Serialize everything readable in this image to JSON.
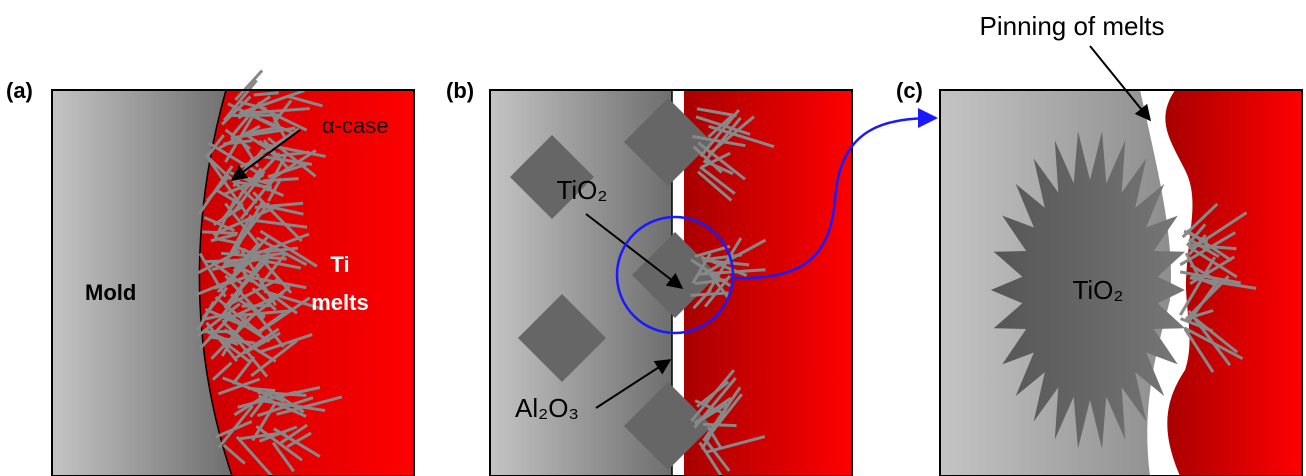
{
  "panels": [
    {
      "label": "(a)",
      "texts": [
        "Mold",
        "Ti",
        "melts",
        "α-case"
      ]
    },
    {
      "label": "(b)",
      "texts": [
        "TiO₂",
        "Al₂O₃"
      ]
    },
    {
      "label": "(c)",
      "texts": [
        "TiO₂"
      ]
    }
  ],
  "annotation": "Pinning of melts"
}
